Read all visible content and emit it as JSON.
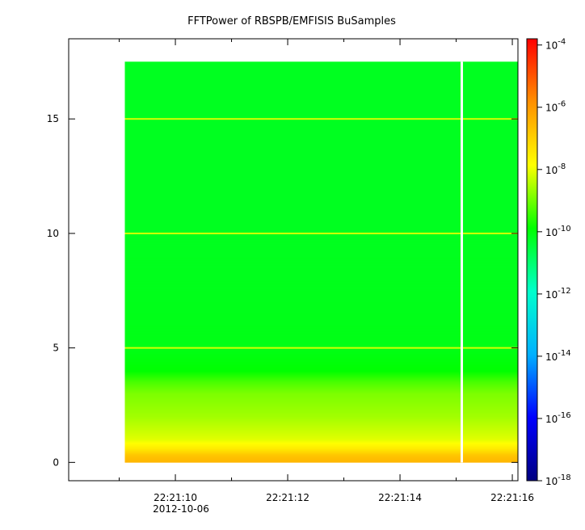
{
  "chart_data": {
    "type": "heatmap",
    "title": "FFTPower of RBSPB/EMFISIS  BuSamples",
    "xlabel": "",
    "ylabel": "",
    "x_date_label": "2012-10-06",
    "x_tick_labels": [
      "22:21:10",
      "22:21:12",
      "22:21:14",
      "22:21:16"
    ],
    "x_ticks_seconds": [
      10,
      12,
      14,
      16
    ],
    "x_minor_ticks_seconds": [
      9,
      11,
      13,
      15
    ],
    "xlim_seconds": [
      8.1,
      16.1
    ],
    "data_x_range_seconds": [
      9.1,
      16.1
    ],
    "gap_x_seconds": 15.1,
    "ylim": [
      -0.8,
      18.5
    ],
    "y_ticks": [
      0,
      5,
      10,
      15
    ],
    "y_tick_labels": [
      "0",
      "5",
      "10",
      "15"
    ],
    "data_y_range": [
      0,
      17.5
    ],
    "horizontal_lines_y": [
      5,
      10,
      15
    ],
    "colorbar": {
      "scale": "log",
      "range_exponents": [
        -18,
        -3.8
      ],
      "tick_exponents": [
        -18,
        -16,
        -14,
        -12,
        -10,
        -8,
        -6,
        -4
      ],
      "tick_labels": [
        "10-18",
        "10-16",
        "10-14",
        "10-12",
        "10-10",
        "10-8",
        "10-6",
        "10-4"
      ],
      "colors": [
        "#000080",
        "#0000ff",
        "#00b0ff",
        "#00ffcc",
        "#00ff00",
        "#ffff00",
        "#ff9000",
        "#ff0000"
      ]
    },
    "power_profile": [
      {
        "y": 0.0,
        "log10_power": -6.5
      },
      {
        "y": 0.3,
        "log10_power": -6.8
      },
      {
        "y": 0.6,
        "log10_power": -7.5
      },
      {
        "y": 1.0,
        "log10_power": -8.1
      },
      {
        "y": 2.0,
        "log10_power": -8.6
      },
      {
        "y": 3.0,
        "log10_power": -8.9
      },
      {
        "y": 3.5,
        "log10_power": -9.3
      },
      {
        "y": 4.0,
        "log10_power": -9.9
      },
      {
        "y": 5.0,
        "log10_power": -10.1
      },
      {
        "y": 10.0,
        "log10_power": -10.2
      },
      {
        "y": 17.5,
        "log10_power": -10.2
      }
    ]
  }
}
